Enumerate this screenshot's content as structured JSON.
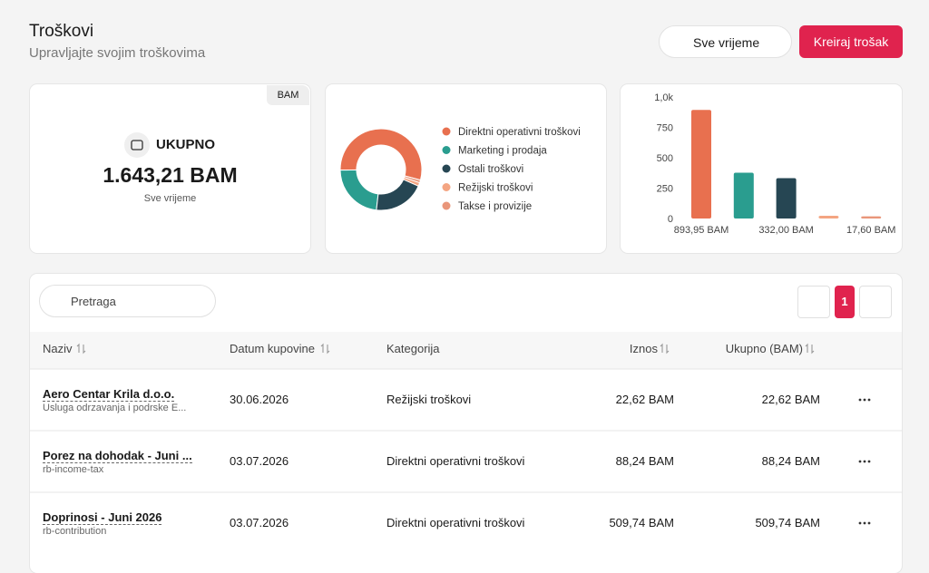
{
  "header": {
    "title": "Troškovi",
    "subtitle": "Upravljajte svojim troškovima",
    "period_button": "Sve vrijeme",
    "create_button": "Kreiraj trošak"
  },
  "summary": {
    "currency_tag": "BAM",
    "label": "UKUPNO",
    "amount": "1.643,21 BAM",
    "period": "Sve vrijeme"
  },
  "chart_data": [
    {
      "type": "donut",
      "categories": [
        "Direktni operativni troškovi",
        "Marketing i prodaja",
        "Ostali troškovi",
        "Režijski troškovi",
        "Takse i provizije"
      ],
      "values": [
        893.95,
        377.04,
        332.0,
        22.62,
        17.6
      ],
      "colors": [
        "#e8704f",
        "#2a9d8f",
        "#264653",
        "#f4a582",
        "#e9967a"
      ]
    },
    {
      "type": "bar",
      "values": [
        893.95,
        377.04,
        332.0,
        22.62,
        17.6
      ],
      "value_labels": [
        "893,95 BAM",
        null,
        "332,00 BAM",
        null,
        "17,60 BAM"
      ],
      "colors": [
        "#e8704f",
        "#2a9d8f",
        "#264653",
        "#f4a582",
        "#e9967a"
      ],
      "ylim": [
        0,
        1000
      ],
      "yticks": [
        0,
        250,
        500,
        750,
        {
          "value": 1000,
          "label": "1,0k"
        }
      ]
    }
  ],
  "search": {
    "placeholder": "Pretraga"
  },
  "pagination": {
    "current": "1"
  },
  "table": {
    "columns": [
      "Naziv",
      "Datum kupovine",
      "Kategorija",
      "Iznos",
      "Ukupno (BAM)"
    ],
    "rows": [
      [
        "Aero Centar Krila d.o.o.",
        "Usluga odrzavanja i podrske E...",
        "30.06.2026",
        "Režijski troškovi",
        "22,62 BAM",
        "22,62 BAM"
      ],
      [
        "Porez na dohodak - Juni ...",
        "rb-income-tax",
        "03.07.2026",
        "Direktni operativni troškovi",
        "88,24 BAM",
        "88,24 BAM"
      ],
      [
        "Doprinosi - Juni 2026",
        "rb-contribution",
        "03.07.2026",
        "Direktni operativni troškovi",
        "509,74 BAM",
        "509,74 BAM"
      ]
    ]
  }
}
